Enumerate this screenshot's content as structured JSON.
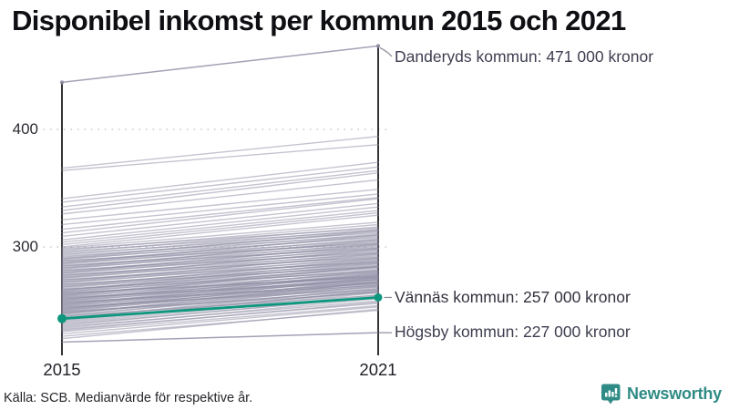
{
  "title": "Disponibel inkomst per kommun 2015 och 2021",
  "source_note": "Källa: SCB. Medianvärde för respektive år.",
  "branding": {
    "name": "Newsworthy",
    "color": "#2F8B85",
    "logo_icon": "chart-speech-bubble-icon"
  },
  "chart_data": {
    "type": "line",
    "subtype": "slope-chart",
    "x": [
      2015,
      2021
    ],
    "x_labels": [
      "2015",
      "2021"
    ],
    "y_ticks": [
      400,
      300
    ],
    "ylim": [
      209,
      480
    ],
    "grid": "dotted-horizontal",
    "unit": "tusen kronor (medianvärde disponibel inkomst)",
    "colors": {
      "highlight": "#0E977E",
      "background_line": "#8C89A2",
      "axis": "#111111",
      "grid": "#CCCCCC",
      "connector": "#8B8B99",
      "annotation_text": "#3E3E50"
    },
    "annotations": [
      {
        "id": "danderyd",
        "label": "Danderyds kommun: 471 000 kronor",
        "values": [
          440,
          471
        ],
        "highlight": false
      },
      {
        "id": "vannas",
        "label": "Vännäs kommun: 257 000 kronor",
        "values": [
          239,
          257
        ],
        "highlight": true
      },
      {
        "id": "hogsby",
        "label": "Högsby kommun: 227 000 kronor",
        "values": [
          219,
          227
        ],
        "highlight": false
      }
    ],
    "background_series": [
      [
        367,
        394
      ],
      [
        365,
        387
      ],
      [
        341,
        372
      ],
      [
        338,
        368
      ],
      [
        334,
        365
      ],
      [
        331,
        363
      ],
      [
        328,
        357
      ],
      [
        323,
        349
      ],
      [
        319,
        345
      ],
      [
        315,
        342
      ],
      [
        312,
        341
      ],
      [
        309,
        337
      ],
      [
        306,
        334
      ],
      [
        304,
        331
      ],
      [
        302,
        329
      ],
      [
        300,
        327
      ],
      [
        222,
        247
      ],
      [
        224,
        246
      ],
      [
        226,
        249
      ],
      [
        228,
        250
      ],
      [
        229,
        253
      ],
      [
        230,
        252
      ],
      [
        231,
        256
      ],
      [
        232,
        254
      ],
      [
        233,
        258
      ],
      [
        234,
        257
      ],
      [
        235,
        259
      ],
      [
        236,
        261
      ],
      [
        237,
        263
      ],
      [
        238,
        262
      ],
      [
        239,
        265
      ],
      [
        240,
        262
      ],
      [
        241,
        267
      ],
      [
        242,
        264
      ],
      [
        243,
        268
      ],
      [
        244,
        266
      ],
      [
        245,
        270
      ],
      [
        246,
        268
      ],
      [
        247,
        271
      ],
      [
        248,
        269
      ],
      [
        249,
        273
      ],
      [
        250,
        270
      ],
      [
        251,
        274
      ],
      [
        252,
        272
      ],
      [
        253,
        276
      ],
      [
        254,
        273
      ],
      [
        255,
        277
      ],
      [
        256,
        275
      ],
      [
        257,
        279
      ],
      [
        258,
        276
      ],
      [
        259,
        281
      ],
      [
        260,
        278
      ],
      [
        261,
        283
      ],
      [
        262,
        280
      ],
      [
        263,
        285
      ],
      [
        264,
        282
      ],
      [
        265,
        287
      ],
      [
        266,
        284
      ],
      [
        267,
        289
      ],
      [
        268,
        286
      ],
      [
        269,
        291
      ],
      [
        270,
        288
      ],
      [
        271,
        293
      ],
      [
        272,
        290
      ],
      [
        273,
        295
      ],
      [
        274,
        292
      ],
      [
        275,
        297
      ],
      [
        276,
        294
      ],
      [
        277,
        299
      ],
      [
        278,
        296
      ],
      [
        279,
        301
      ],
      [
        280,
        298
      ],
      [
        281,
        303
      ],
      [
        282,
        300
      ],
      [
        283,
        305
      ],
      [
        284,
        302
      ],
      [
        285,
        307
      ],
      [
        286,
        304
      ],
      [
        287,
        309
      ],
      [
        288,
        306
      ],
      [
        289,
        311
      ],
      [
        290,
        308
      ],
      [
        291,
        313
      ],
      [
        292,
        310
      ],
      [
        293,
        315
      ],
      [
        294,
        312
      ],
      [
        295,
        317
      ],
      [
        296,
        314
      ],
      [
        297,
        319
      ],
      [
        298,
        316
      ],
      [
        299,
        321
      ],
      [
        244,
        263
      ],
      [
        246,
        272
      ],
      [
        248,
        266
      ],
      [
        250,
        275
      ],
      [
        252,
        269
      ],
      [
        254,
        278
      ],
      [
        256,
        272
      ],
      [
        258,
        283
      ],
      [
        260,
        275
      ],
      [
        262,
        286
      ],
      [
        264,
        279
      ],
      [
        266,
        290
      ],
      [
        268,
        283
      ],
      [
        270,
        294
      ],
      [
        272,
        287
      ],
      [
        274,
        298
      ],
      [
        276,
        291
      ],
      [
        278,
        302
      ],
      [
        280,
        295
      ],
      [
        282,
        306
      ],
      [
        284,
        299
      ],
      [
        286,
        310
      ],
      [
        288,
        303
      ],
      [
        290,
        314
      ],
      [
        241,
        259
      ],
      [
        243,
        270
      ],
      [
        245,
        261
      ],
      [
        247,
        274
      ],
      [
        249,
        264
      ],
      [
        251,
        277
      ],
      [
        253,
        267
      ],
      [
        255,
        280
      ],
      [
        257,
        270
      ],
      [
        259,
        284
      ],
      [
        261,
        274
      ],
      [
        263,
        288
      ]
    ]
  }
}
